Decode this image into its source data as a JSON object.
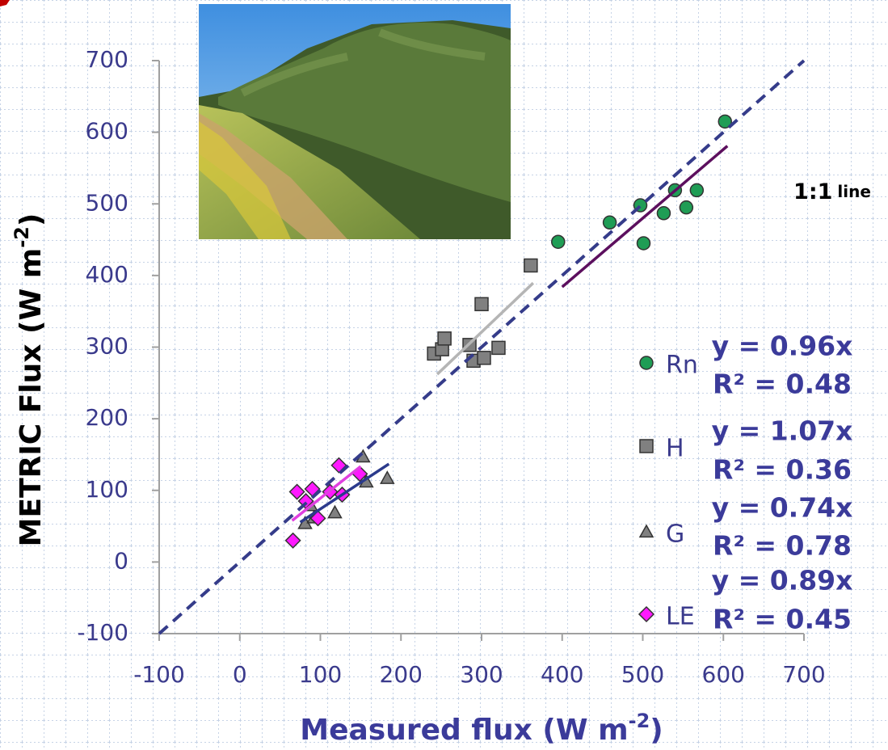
{
  "chart_data": {
    "type": "scatter",
    "x_label": [
      "Measured flux (W m",
      "-2",
      ")"
    ],
    "y_label": [
      "METRIC  Flux (W m",
      "-2",
      ")"
    ],
    "xlim": [
      -100,
      700
    ],
    "xticks": [
      -100,
      0,
      100,
      200,
      300,
      400,
      500,
      600,
      700
    ],
    "ylim": [
      -100,
      700
    ],
    "yticks": [
      -100,
      0,
      100,
      200,
      300,
      400,
      500,
      600,
      700
    ],
    "identity_line": {
      "label": [
        "1:1",
        "line"
      ],
      "color": "#353c8a"
    },
    "legend": "right",
    "series": [
      {
        "name": "Rn",
        "marker": "circle",
        "color": "#1f9d55",
        "x": [
          395,
          459,
          497,
          501,
          526,
          540,
          554,
          567,
          602
        ],
        "values": [
          447,
          474,
          498,
          445,
          487,
          519,
          495,
          519,
          615
        ],
        "trendline": {
          "slope": {
            "value": 0.96,
            "label": "y = 0.96x"
          },
          "r_squared_label": "R² = 0.48",
          "x_range": [
            400,
            605
          ],
          "color": "#5c0f5e"
        }
      },
      {
        "name": "H",
        "marker": "square",
        "color": "#808080",
        "x": [
          241,
          251,
          254,
          285,
          290,
          300,
          303,
          321,
          361
        ],
        "values": [
          291,
          297,
          312,
          303,
          281,
          360,
          285,
          299,
          414
        ],
        "trendline": {
          "slope": {
            "value": 1.07,
            "label": "y = 1.07x"
          },
          "r_squared_label": "R² = 0.36",
          "x_range": [
            245,
            364
          ],
          "color": "#b5b5b5"
        }
      },
      {
        "name": "G",
        "marker": "triangle",
        "color": "#808080",
        "x": [
          81,
          88,
          92,
          118,
          153,
          157,
          183
        ],
        "values": [
          54,
          79,
          62,
          69,
          147,
          112,
          117
        ],
        "trendline": {
          "slope": {
            "value": 0.74,
            "label": "y = 0.74x"
          },
          "r_squared_label": "R² = 0.78",
          "x_range": [
            75,
            185
          ],
          "color": "#2b3a8c"
        }
      },
      {
        "name": "LE",
        "marker": "diamond",
        "color": "#ff19ff",
        "x": [
          66,
          71,
          82,
          90,
          97,
          112,
          123,
          127,
          149
        ],
        "values": [
          30,
          98,
          85,
          102,
          61,
          98,
          135,
          94,
          123
        ],
        "trendline": {
          "slope": {
            "value": 0.89,
            "label": "y = 0.89x"
          },
          "r_squared_label": "R² = 0.45",
          "x_range": [
            65,
            150
          ],
          "color": "#e040e0"
        }
      }
    ]
  }
}
